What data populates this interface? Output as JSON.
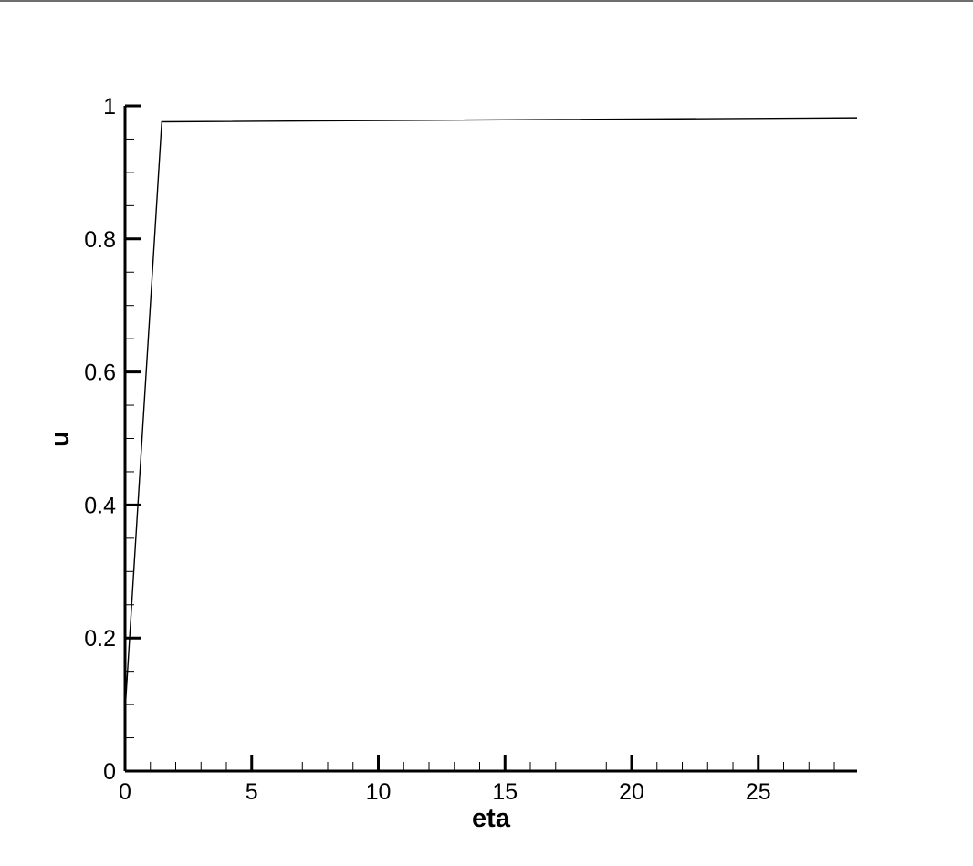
{
  "chart_data": {
    "type": "line",
    "title": "",
    "xlabel": "eta",
    "ylabel": "u",
    "xlim": [
      0,
      28.9
    ],
    "ylim": [
      0,
      1
    ],
    "x_ticks": [
      0,
      5,
      10,
      15,
      20,
      25
    ],
    "x_tick_labels": [
      "0",
      "5",
      "10",
      "15",
      "20",
      "25"
    ],
    "y_ticks": [
      0,
      0.2,
      0.4,
      0.6,
      0.8,
      1
    ],
    "y_tick_labels": [
      "0",
      "0.2",
      "0.4",
      "0.6",
      "0.8",
      "1"
    ],
    "grid": false,
    "legend": "none",
    "line_color": "#000000",
    "series": [
      {
        "x": [
          0,
          1.45,
          28.9
        ],
        "y": [
          0.09,
          0.976,
          0.982
        ]
      }
    ]
  }
}
